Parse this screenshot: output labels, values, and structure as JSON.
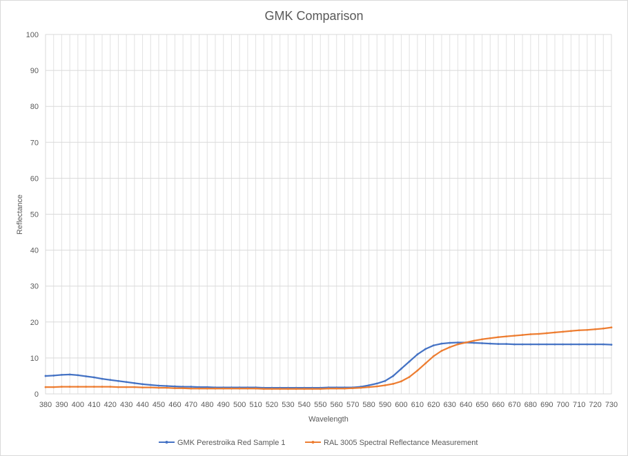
{
  "chart_data": {
    "type": "line",
    "title": "GMK Comparison",
    "xlabel": "Wavelength",
    "ylabel": "Reflectance",
    "xlim": [
      380,
      730
    ],
    "ylim": [
      0,
      100
    ],
    "x_step": 5,
    "x_tick_step": 10,
    "y_tick_step": 10,
    "grid": true,
    "legend_position": "bottom",
    "series": [
      {
        "name": "GMK Perestroika Red Sample 1",
        "color": "#4472c4",
        "x": [
          380,
          385,
          390,
          395,
          400,
          405,
          410,
          415,
          420,
          425,
          430,
          435,
          440,
          445,
          450,
          455,
          460,
          465,
          470,
          475,
          480,
          485,
          490,
          495,
          500,
          505,
          510,
          515,
          520,
          525,
          530,
          535,
          540,
          545,
          550,
          555,
          560,
          565,
          570,
          575,
          580,
          585,
          590,
          595,
          600,
          605,
          610,
          615,
          620,
          625,
          630,
          635,
          640,
          645,
          650,
          655,
          660,
          665,
          670,
          675,
          680,
          685,
          690,
          695,
          700,
          705,
          710,
          715,
          720,
          725,
          730
        ],
        "y": [
          5.0,
          5.1,
          5.3,
          5.4,
          5.2,
          4.9,
          4.6,
          4.2,
          3.9,
          3.6,
          3.3,
          3.0,
          2.7,
          2.5,
          2.3,
          2.2,
          2.1,
          2.0,
          2.0,
          1.9,
          1.9,
          1.8,
          1.8,
          1.8,
          1.8,
          1.8,
          1.8,
          1.7,
          1.7,
          1.7,
          1.7,
          1.7,
          1.7,
          1.7,
          1.7,
          1.8,
          1.8,
          1.8,
          1.8,
          2.0,
          2.4,
          2.9,
          3.6,
          5.0,
          7.0,
          9.0,
          11.0,
          12.5,
          13.5,
          14.0,
          14.2,
          14.3,
          14.3,
          14.2,
          14.1,
          14.0,
          13.9,
          13.9,
          13.8,
          13.8,
          13.8,
          13.8,
          13.8,
          13.8,
          13.8,
          13.8,
          13.8,
          13.8,
          13.8,
          13.8,
          13.7
        ]
      },
      {
        "name": "RAL 3005 Spectral Reflectance Measurement",
        "color": "#ed7d31",
        "x": [
          380,
          385,
          390,
          395,
          400,
          405,
          410,
          415,
          420,
          425,
          430,
          435,
          440,
          445,
          450,
          455,
          460,
          465,
          470,
          475,
          480,
          485,
          490,
          495,
          500,
          505,
          510,
          515,
          520,
          525,
          530,
          535,
          540,
          545,
          550,
          555,
          560,
          565,
          570,
          575,
          580,
          585,
          590,
          595,
          600,
          605,
          610,
          615,
          620,
          625,
          630,
          635,
          640,
          645,
          650,
          655,
          660,
          665,
          670,
          675,
          680,
          685,
          690,
          695,
          700,
          705,
          710,
          715,
          720,
          725,
          730
        ],
        "y": [
          1.9,
          1.9,
          2.0,
          2.0,
          2.0,
          2.0,
          2.0,
          2.0,
          2.0,
          1.9,
          1.9,
          1.9,
          1.8,
          1.8,
          1.7,
          1.7,
          1.6,
          1.6,
          1.5,
          1.5,
          1.5,
          1.5,
          1.5,
          1.5,
          1.5,
          1.5,
          1.5,
          1.4,
          1.4,
          1.4,
          1.4,
          1.4,
          1.4,
          1.4,
          1.4,
          1.5,
          1.5,
          1.5,
          1.6,
          1.7,
          1.9,
          2.1,
          2.4,
          2.8,
          3.5,
          4.7,
          6.5,
          8.5,
          10.5,
          12.0,
          13.0,
          13.8,
          14.3,
          14.8,
          15.2,
          15.5,
          15.8,
          16.0,
          16.2,
          16.4,
          16.6,
          16.7,
          16.9,
          17.1,
          17.3,
          17.5,
          17.7,
          17.8,
          18.0,
          18.2,
          18.5
        ]
      }
    ]
  }
}
